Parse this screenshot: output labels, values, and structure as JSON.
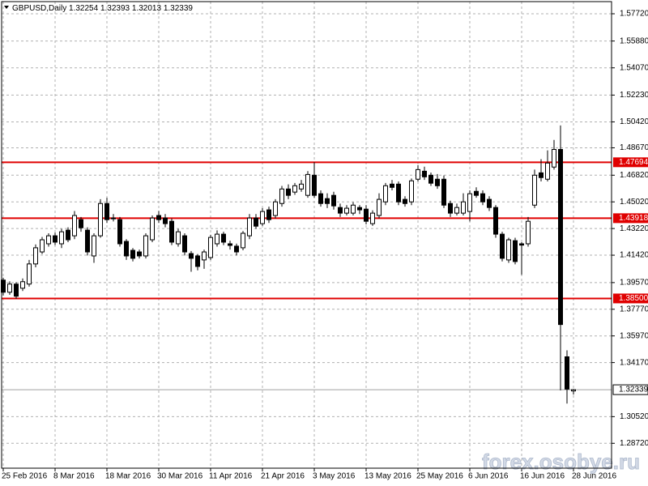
{
  "chart_data": {
    "type": "candlestick",
    "title": "GBPUSD,Daily",
    "watermark": "forex.osobye.ru",
    "categories": [
      "25 Feb 2016",
      null,
      null,
      null,
      null,
      null,
      null,
      null,
      "8 Mar 2016",
      null,
      null,
      null,
      null,
      null,
      null,
      null,
      "18 Mar 2016",
      null,
      null,
      null,
      null,
      null,
      null,
      null,
      "30 Mar 2016",
      null,
      null,
      null,
      null,
      null,
      null,
      null,
      "11 Apr 2016",
      null,
      null,
      null,
      null,
      null,
      null,
      null,
      "21 Apr 2016",
      null,
      null,
      null,
      null,
      null,
      null,
      null,
      "3 May 2016",
      null,
      null,
      null,
      null,
      null,
      null,
      null,
      "13 May 2016",
      null,
      null,
      null,
      null,
      null,
      null,
      null,
      "25 May 2016",
      null,
      null,
      null,
      null,
      null,
      null,
      null,
      "6 Jun 2016",
      null,
      null,
      null,
      null,
      null,
      null,
      null,
      "16 Jun 2016",
      null,
      null,
      null,
      null,
      null,
      null,
      null,
      "28 Jun 2016"
    ],
    "open": [
      1.3974,
      1.3892,
      1.3947,
      1.3919,
      1.3947,
      1.4083,
      1.4164,
      1.4219,
      1.4273,
      1.4219,
      1.4311,
      1.4273,
      1.4382,
      1.4311,
      1.4137,
      1.4273,
      1.4491,
      1.4393,
      1.4382,
      1.4235,
      1.4175,
      1.4164,
      1.4137,
      1.4246,
      1.441,
      1.4393,
      1.4371,
      1.4219,
      1.4273,
      1.4153,
      1.4137,
      1.411,
      1.4126,
      1.4219,
      1.4284,
      1.4219,
      1.4203,
      1.4192,
      1.4273,
      1.4393,
      1.4355,
      1.4448,
      1.441,
      1.4491,
      1.4589,
      1.4568,
      1.4589,
      1.4546,
      1.4682,
      1.4557,
      1.4524,
      1.4546,
      1.4464,
      1.4426,
      1.4426,
      1.4464,
      1.4453,
      1.4355,
      1.441,
      1.4502,
      1.4622,
      1.4622,
      1.4519,
      1.4502,
      1.4655,
      1.4709,
      1.4682,
      1.4655,
      1.4655,
      1.4491,
      1.4426,
      1.4426,
      1.4437,
      1.4573,
      1.4557,
      1.4519,
      1.4464,
      1.4284,
      1.411,
      1.424,
      1.4219,
      1.4219,
      1.448,
      1.4698,
      1.4655,
      1.4737,
      1.4856,
      1.3456,
      1.32254
    ],
    "high": [
      1.399,
      1.3965,
      1.396,
      1.3985,
      1.411,
      1.4215,
      1.4265,
      1.429,
      1.4295,
      1.432,
      1.433,
      1.444,
      1.44,
      1.433,
      1.429,
      1.452,
      1.453,
      1.442,
      1.44,
      1.425,
      1.419,
      1.418,
      1.429,
      1.441,
      1.444,
      1.442,
      1.439,
      1.432,
      1.429,
      1.417,
      1.415,
      1.418,
      1.428,
      1.431,
      1.43,
      1.424,
      1.422,
      1.4305,
      1.442,
      1.442,
      1.446,
      1.447,
      1.452,
      1.461,
      1.462,
      1.463,
      1.465,
      1.471,
      1.477,
      1.458,
      1.456,
      1.457,
      1.449,
      1.448,
      1.45,
      1.448,
      1.448,
      1.4445,
      1.456,
      1.463,
      1.465,
      1.464,
      1.454,
      1.466,
      1.475,
      1.474,
      1.47,
      1.469,
      1.468,
      1.451,
      1.449,
      1.456,
      1.458,
      1.46,
      1.458,
      1.454,
      1.448,
      1.43,
      1.426,
      1.426,
      1.423,
      1.44,
      1.472,
      1.479,
      1.485,
      1.492,
      1.5018,
      1.35,
      1.32393
    ],
    "low": [
      1.387,
      1.3875,
      1.3848,
      1.39,
      1.393,
      1.406,
      1.415,
      1.42,
      1.421,
      1.419,
      1.423,
      1.425,
      1.43,
      1.414,
      1.409,
      1.426,
      1.436,
      1.437,
      1.42,
      1.411,
      1.41,
      1.412,
      1.412,
      1.423,
      1.436,
      1.433,
      1.421,
      1.42,
      1.414,
      1.403,
      1.404,
      1.405,
      1.411,
      1.42,
      1.421,
      1.418,
      1.414,
      1.4175,
      1.425,
      1.432,
      1.434,
      1.436,
      1.439,
      1.447,
      1.452,
      1.455,
      1.457,
      1.453,
      1.453,
      1.447,
      1.446,
      1.445,
      1.44,
      1.441,
      1.441,
      1.442,
      1.435,
      1.434,
      1.439,
      1.448,
      1.458,
      1.448,
      1.447,
      1.448,
      1.464,
      1.465,
      1.461,
      1.459,
      1.446,
      1.44,
      1.441,
      1.441,
      1.437,
      1.453,
      1.448,
      1.444,
      1.426,
      1.41,
      1.409,
      1.408,
      1.401,
      1.42,
      1.446,
      1.464,
      1.464,
      1.472,
      1.323,
      1.314,
      1.32013
    ],
    "close": [
      1.3892,
      1.3947,
      1.3865,
      1.3963,
      1.4083,
      1.4192,
      1.4246,
      1.4273,
      1.423,
      1.43,
      1.4246,
      1.441,
      1.4327,
      1.4164,
      1.4273,
      1.4491,
      1.4382,
      1.439,
      1.4219,
      1.4137,
      1.4121,
      1.4137,
      1.4273,
      1.4393,
      1.4382,
      1.4355,
      1.423,
      1.43,
      1.4164,
      1.4121,
      1.4066,
      1.4164,
      1.4262,
      1.4284,
      1.423,
      1.4208,
      1.4164,
      1.429,
      1.4393,
      1.4338,
      1.4437,
      1.4382,
      1.4502,
      1.4589,
      1.4546,
      1.4611,
      1.4622,
      1.4687,
      1.4546,
      1.4491,
      1.4491,
      1.4475,
      1.4426,
      1.4459,
      1.448,
      1.4448,
      1.4371,
      1.4426,
      1.4519,
      1.4611,
      1.46,
      1.4502,
      1.4491,
      1.4644,
      1.472,
      1.4671,
      1.4628,
      1.4611,
      1.448,
      1.4426,
      1.4464,
      1.4502,
      1.4557,
      1.4546,
      1.4502,
      1.4464,
      1.4284,
      1.4121,
      1.4246,
      1.4099,
      1.421,
      1.4371,
      1.4682,
      1.4666,
      1.4764,
      1.4856,
      1.3674,
      1.3238,
      1.32339
    ],
    "up_color": "#ffffff",
    "down_color": "#000000",
    "line_color": "#000000",
    "hlines": [
      {
        "value": 1.47694,
        "label": "1.47694"
      },
      {
        "value": 1.43918,
        "label": "1.43918"
      },
      {
        "value": 1.385,
        "label": "1.38500"
      }
    ],
    "hline_color": "#e00000",
    "ylim": [
      1.2704,
      1.5854
    ],
    "yticks": [
      {
        "value": 1.5772,
        "label": "1.57720"
      },
      {
        "value": 1.5588,
        "label": "1.55880"
      },
      {
        "value": 1.5407,
        "label": "1.54070"
      },
      {
        "value": 1.5223,
        "label": "1.52230"
      },
      {
        "value": 1.5042,
        "label": "1.50420"
      },
      {
        "value": 1.4867,
        "label": "1.48670"
      },
      {
        "value": 1.4682,
        "label": "1.46820"
      },
      {
        "value": 1.4502,
        "label": "1.45020"
      },
      {
        "value": 1.4322,
        "label": "1.43220"
      },
      {
        "value": 1.4142,
        "label": "1.41420"
      },
      {
        "value": 1.3957,
        "label": "1.39570"
      },
      {
        "value": 1.3777,
        "label": "1.37770"
      },
      {
        "value": 1.3597,
        "label": "1.35970"
      },
      {
        "value": 1.3417,
        "label": "1.34170"
      },
      {
        "value": 1.3052,
        "label": "1.30520"
      },
      {
        "value": 1.2872,
        "label": "1.28720"
      }
    ],
    "grid": true
  }
}
